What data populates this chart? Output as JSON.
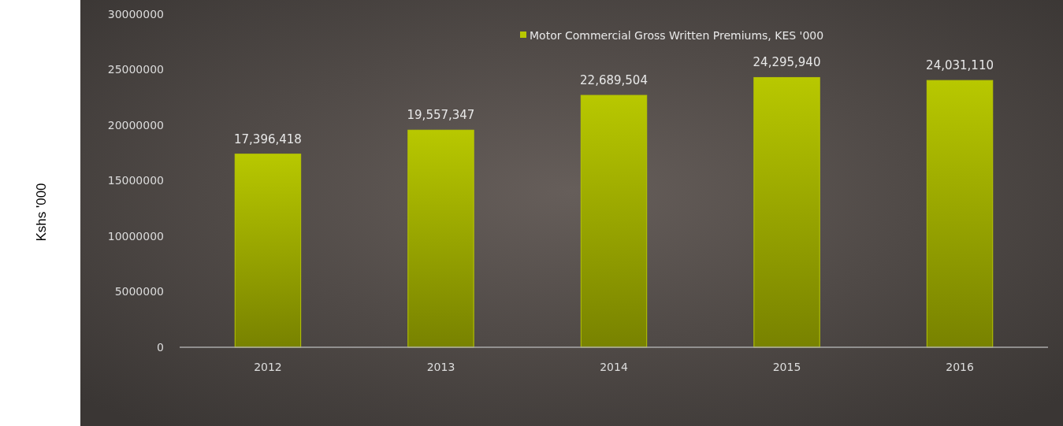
{
  "chart_data": {
    "type": "bar",
    "ylabel": "Kshs '000",
    "categories": [
      "2012",
      "2013",
      "2014",
      "2015",
      "2016"
    ],
    "series": [
      {
        "name": "Motor Commercial Gross Written Premiums, KES '000",
        "color": "#b8c800",
        "values": [
          17396418,
          19557347,
          22689504,
          24295940,
          24031110
        ],
        "value_labels": [
          "17,396,418",
          "19,557,347",
          "22,689,504",
          "24,295,940",
          "24,031,110"
        ]
      }
    ],
    "ylim": [
      0,
      30000000
    ],
    "yticks": [
      0,
      5000000,
      10000000,
      15000000,
      20000000,
      25000000,
      30000000
    ],
    "grid": false,
    "legend": "top"
  }
}
